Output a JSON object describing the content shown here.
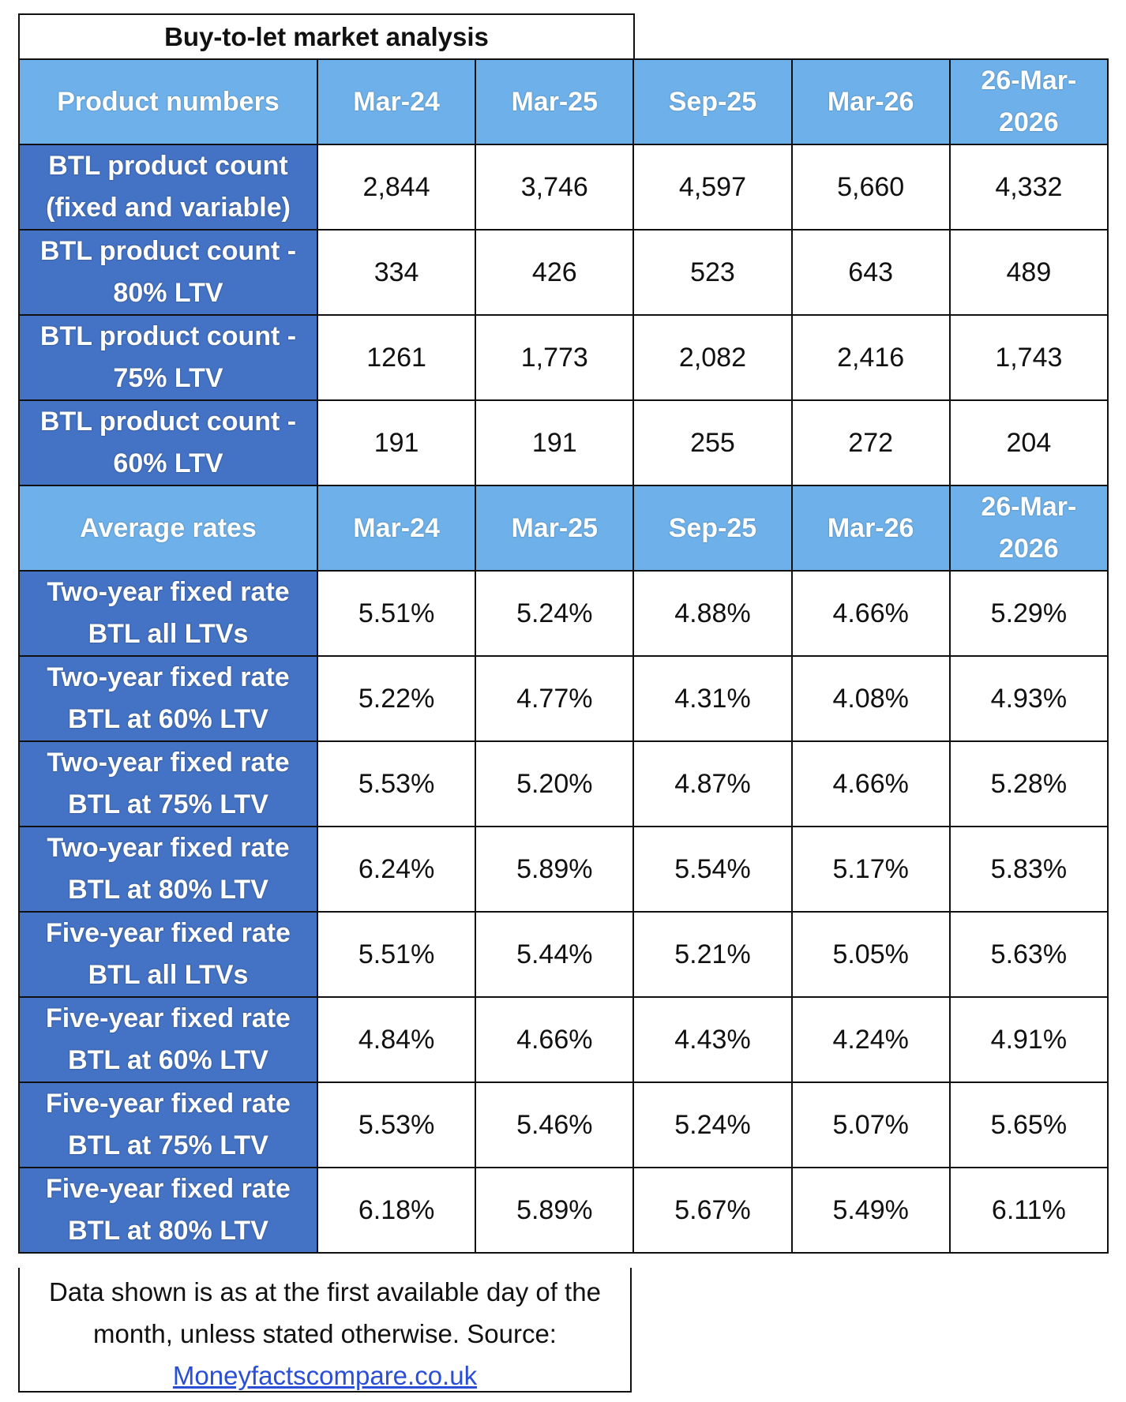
{
  "title": "Buy-to-let market analysis",
  "sections": [
    {
      "header": [
        "Product numbers",
        "Mar-24",
        "Mar-25",
        "Sep-25",
        "Mar-26",
        "26-Mar-2026"
      ],
      "rows": [
        {
          "label": "BTL product count (fixed and variable)",
          "values": [
            "2,844",
            "3,746",
            "4,597",
            "5,660",
            "4,332"
          ]
        },
        {
          "label": "BTL product count - 80% LTV",
          "values": [
            "334",
            "426",
            "523",
            "643",
            "489"
          ]
        },
        {
          "label": "BTL product count - 75% LTV",
          "values": [
            "1261",
            "1,773",
            "2,082",
            "2,416",
            "1,743"
          ]
        },
        {
          "label": "BTL product count - 60% LTV",
          "values": [
            "191",
            "191",
            "255",
            "272",
            "204"
          ]
        }
      ]
    },
    {
      "header": [
        "Average rates",
        "Mar-24",
        "Mar-25",
        "Sep-25",
        "Mar-26",
        "26-Mar-2026"
      ],
      "rows": [
        {
          "label": "Two-year fixed rate BTL all LTVs",
          "values": [
            "5.51%",
            "5.24%",
            "4.88%",
            "4.66%",
            "5.29%"
          ]
        },
        {
          "label": "Two-year fixed rate BTL at 60% LTV",
          "values": [
            "5.22%",
            "4.77%",
            "4.31%",
            "4.08%",
            "4.93%"
          ]
        },
        {
          "label": "Two-year fixed rate BTL at 75% LTV",
          "values": [
            "5.53%",
            "5.20%",
            "4.87%",
            "4.66%",
            "5.28%"
          ]
        },
        {
          "label": "Two-year fixed rate BTL at 80% LTV",
          "values": [
            "6.24%",
            "5.89%",
            "5.54%",
            "5.17%",
            "5.83%"
          ]
        },
        {
          "label": "Five-year fixed rate BTL all LTVs",
          "values": [
            "5.51%",
            "5.44%",
            "5.21%",
            "5.05%",
            "5.63%"
          ]
        },
        {
          "label": "Five-year fixed rate BTL at 60% LTV",
          "values": [
            "4.84%",
            "4.66%",
            "4.43%",
            "4.24%",
            "4.91%"
          ]
        },
        {
          "label": "Five-year fixed rate BTL at 75% LTV",
          "values": [
            "5.53%",
            "5.46%",
            "5.24%",
            "5.07%",
            "5.65%"
          ]
        },
        {
          "label": "Five-year fixed rate BTL at 80% LTV",
          "values": [
            "6.18%",
            "5.89%",
            "5.67%",
            "5.49%",
            "6.11%"
          ]
        }
      ]
    }
  ],
  "footer": {
    "note": "Data shown is as at the first available day of the month, unless stated otherwise. Source:",
    "link": "Moneyfactscompare.co.uk"
  }
}
